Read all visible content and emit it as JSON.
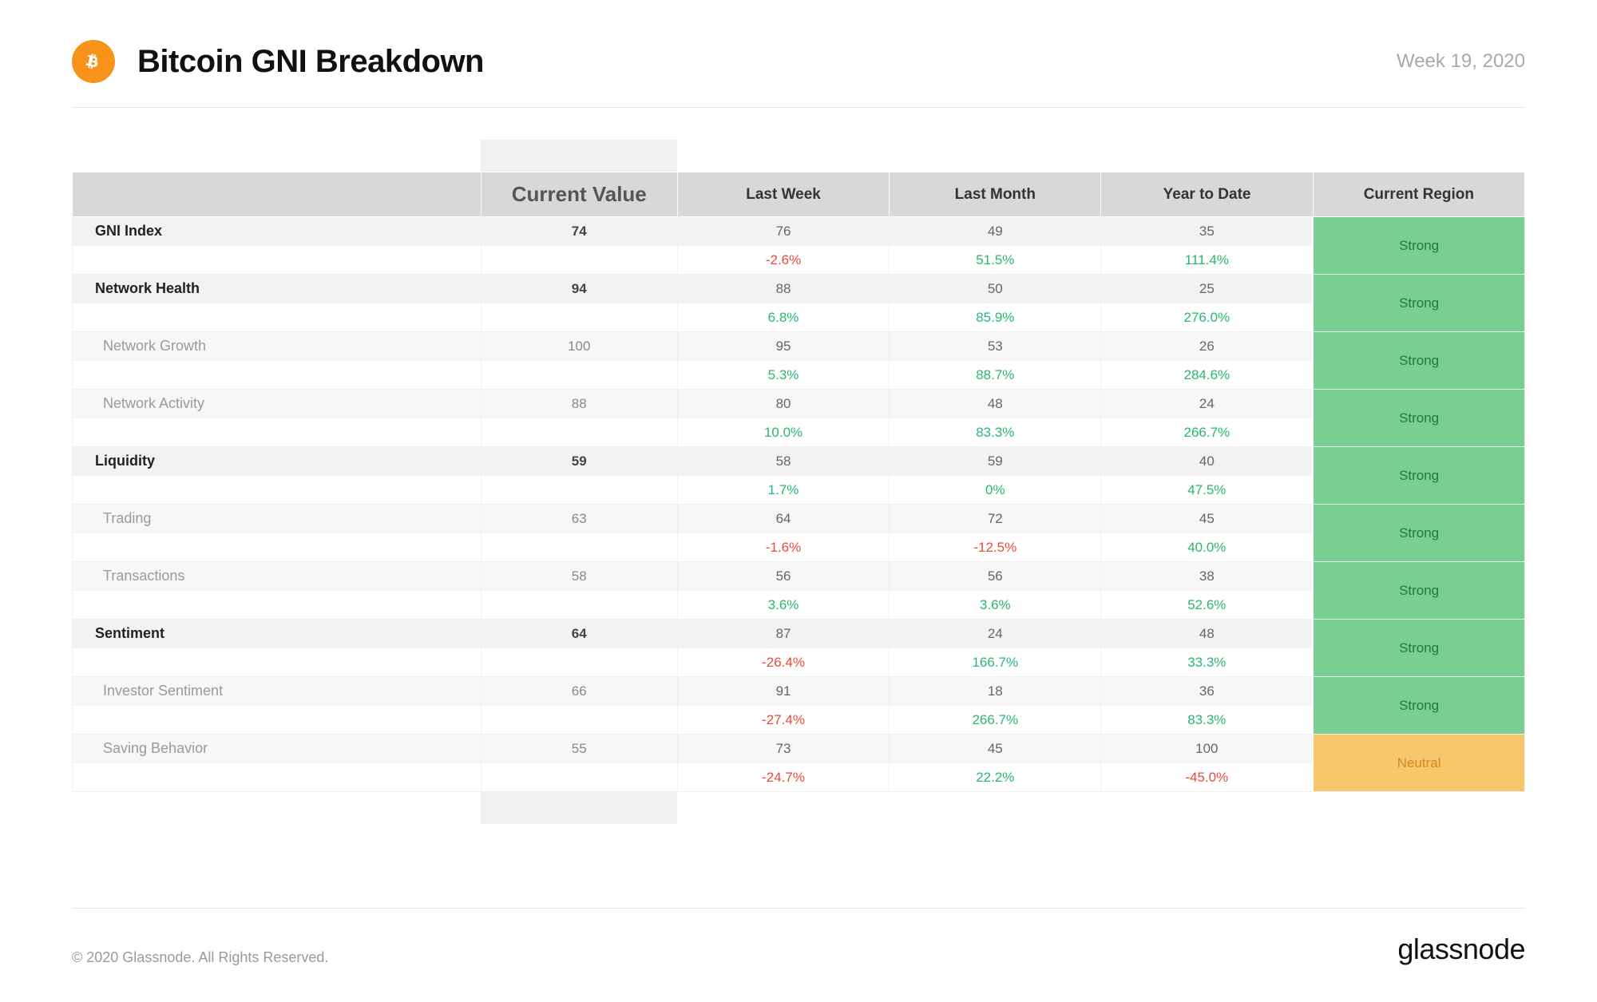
{
  "header": {
    "icon_bg": "#f7931a",
    "icon_name": "bitcoin-icon",
    "title": "Bitcoin GNI Breakdown",
    "week_label": "Week 19, 2020"
  },
  "columns": {
    "current": "Current Value",
    "last_week": "Last Week",
    "last_month": "Last Month",
    "ytd": "Year to Date",
    "region": "Current Region"
  },
  "region_styles": {
    "Strong": {
      "bg": "#79cf8f",
      "text": "#1e7a3e"
    },
    "Neutral": {
      "bg": "#f6c76b",
      "text": "#d28a1f"
    }
  },
  "colors": {
    "positive": "#2bb673",
    "negative": "#e74c3c",
    "header_row_bg": "#d8d8d8",
    "value_row_bg": "#f2f2f2",
    "sub_value_row_bg": "#f7f7f7",
    "pct_row_bg": "#ffffff",
    "highlight_band": "#e3e3e3"
  },
  "rows": [
    {
      "label": "GNI Index",
      "sub": false,
      "current": "74",
      "last_week": "76",
      "last_week_pct": "-2.6%",
      "last_month": "49",
      "last_month_pct": "51.5%",
      "ytd": "35",
      "ytd_pct": "111.4%",
      "region": "Strong"
    },
    {
      "label": "Network Health",
      "sub": false,
      "current": "94",
      "last_week": "88",
      "last_week_pct": "6.8%",
      "last_month": "50",
      "last_month_pct": "85.9%",
      "ytd": "25",
      "ytd_pct": "276.0%",
      "region": "Strong"
    },
    {
      "label": "Network Growth",
      "sub": true,
      "current": "100",
      "last_week": "95",
      "last_week_pct": "5.3%",
      "last_month": "53",
      "last_month_pct": "88.7%",
      "ytd": "26",
      "ytd_pct": "284.6%",
      "region": "Strong"
    },
    {
      "label": "Network Activity",
      "sub": true,
      "current": "88",
      "last_week": "80",
      "last_week_pct": "10.0%",
      "last_month": "48",
      "last_month_pct": "83.3%",
      "ytd": "24",
      "ytd_pct": "266.7%",
      "region": "Strong"
    },
    {
      "label": "Liquidity",
      "sub": false,
      "current": "59",
      "last_week": "58",
      "last_week_pct": "1.7%",
      "last_month": "59",
      "last_month_pct": "0%",
      "ytd": "40",
      "ytd_pct": "47.5%",
      "region": "Strong"
    },
    {
      "label": "Trading",
      "sub": true,
      "current": "63",
      "last_week": "64",
      "last_week_pct": "-1.6%",
      "last_month": "72",
      "last_month_pct": "-12.5%",
      "ytd": "45",
      "ytd_pct": "40.0%",
      "region": "Strong"
    },
    {
      "label": "Transactions",
      "sub": true,
      "current": "58",
      "last_week": "56",
      "last_week_pct": "3.6%",
      "last_month": "56",
      "last_month_pct": "3.6%",
      "ytd": "38",
      "ytd_pct": "52.6%",
      "region": "Strong"
    },
    {
      "label": "Sentiment",
      "sub": false,
      "current": "64",
      "last_week": "87",
      "last_week_pct": "-26.4%",
      "last_month": "24",
      "last_month_pct": "166.7%",
      "ytd": "48",
      "ytd_pct": "33.3%",
      "region": "Strong"
    },
    {
      "label": "Investor Sentiment",
      "sub": true,
      "current": "66",
      "last_week": "91",
      "last_week_pct": "-27.4%",
      "last_month": "18",
      "last_month_pct": "266.7%",
      "ytd": "36",
      "ytd_pct": "83.3%",
      "region": "Strong"
    },
    {
      "label": "Saving Behavior",
      "sub": true,
      "current": "55",
      "last_week": "73",
      "last_week_pct": "-24.7%",
      "last_month": "45",
      "last_month_pct": "22.2%",
      "ytd": "100",
      "ytd_pct": "-45.0%",
      "region": "Neutral"
    }
  ],
  "footer": {
    "copyright": "© 2020 Glassnode. All Rights Reserved.",
    "brand": "glassnode"
  }
}
